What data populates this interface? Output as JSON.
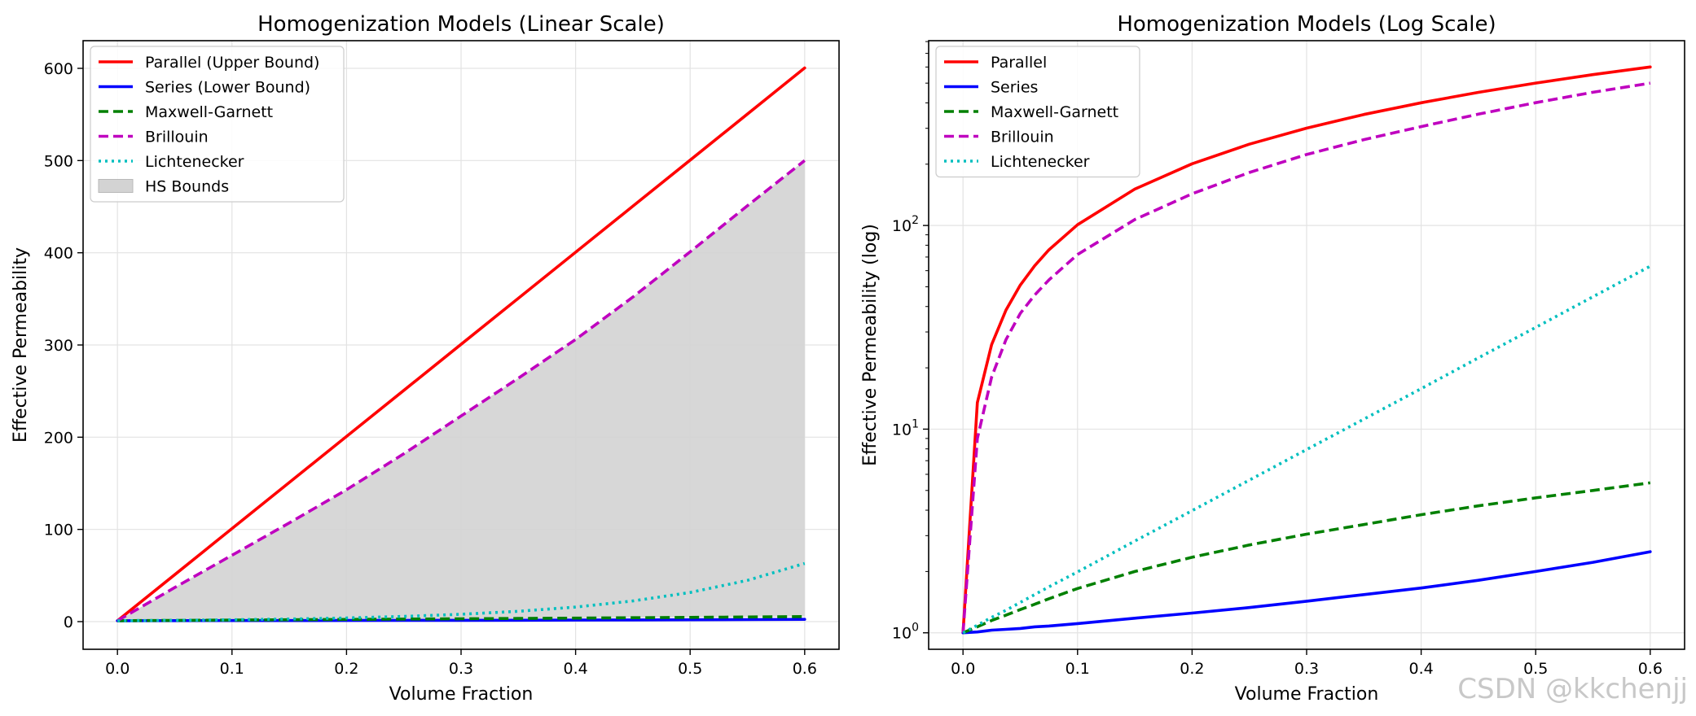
{
  "chart_data": [
    {
      "type": "line",
      "scale": "linear",
      "title": "Homogenization Models (Linear Scale)",
      "xlabel": "Volume Fraction",
      "ylabel": "Effective Permeability",
      "xlim": [
        -0.03,
        0.63
      ],
      "ylim": [
        -30,
        630
      ],
      "xticks": [
        0.0,
        0.1,
        0.2,
        0.3,
        0.4,
        0.5,
        0.6
      ],
      "xtick_labels": [
        "0.0",
        "0.1",
        "0.2",
        "0.3",
        "0.4",
        "0.5",
        "0.6"
      ],
      "yticks": [
        0,
        100,
        200,
        300,
        400,
        500,
        600
      ],
      "ytick_labels": [
        "0",
        "100",
        "200",
        "300",
        "400",
        "500",
        "600"
      ],
      "grid": true,
      "legend_position": "top-left",
      "x": [
        0.0,
        0.05,
        0.1,
        0.15,
        0.2,
        0.25,
        0.3,
        0.35,
        0.4,
        0.45,
        0.5,
        0.55,
        0.6
      ],
      "series": [
        {
          "name": "Parallel (Upper Bound)",
          "color": "#ff0000",
          "style": "solid",
          "values": [
            1,
            50.95,
            100.9,
            150.85,
            200.8,
            250.75,
            300.7,
            350.65,
            400.6,
            450.55,
            500.5,
            550.45,
            600.4
          ]
        },
        {
          "name": "Series (Lower Bound)",
          "color": "#0000ff",
          "style": "solid",
          "values": [
            1,
            1.05,
            1.11,
            1.18,
            1.25,
            1.33,
            1.43,
            1.54,
            1.66,
            1.81,
            2.0,
            2.22,
            2.5
          ]
        },
        {
          "name": "Maxwell-Garnett",
          "color": "#008000",
          "style": "dashed",
          "values": [
            1,
            1.3,
            1.65,
            2.0,
            2.35,
            2.7,
            3.05,
            3.4,
            3.8,
            4.2,
            4.6,
            5.0,
            5.45
          ]
        },
        {
          "name": "Brillouin",
          "color": "#bf00bf",
          "style": "dashed",
          "values": [
            1,
            37,
            72,
            107,
            143,
            182,
            223,
            264,
            306,
            352,
            401,
            451,
            500
          ]
        },
        {
          "name": "Lichtenecker",
          "color": "#00bfbf",
          "style": "dotted",
          "values": [
            1,
            1.41,
            1.99,
            2.82,
            3.98,
            5.62,
            7.94,
            11.2,
            15.8,
            22.4,
            31.6,
            44.7,
            63.1
          ]
        }
      ],
      "band": {
        "name": "HS Bounds",
        "color": "#d3d3d3",
        "lower": [
          1,
          1.3,
          1.65,
          2.0,
          2.35,
          2.7,
          3.05,
          3.4,
          3.8,
          4.2,
          4.6,
          5.0,
          5.45
        ],
        "upper": [
          1,
          37,
          72,
          107,
          143,
          182,
          223,
          264,
          306,
          352,
          401,
          451,
          500
        ]
      }
    },
    {
      "type": "line",
      "scale": "log",
      "title": "Homogenization Models (Log Scale)",
      "xlabel": "Volume Fraction",
      "ylabel": "Effective Permeability (log)",
      "xlim": [
        -0.03,
        0.63
      ],
      "ylim": [
        0.83,
        808
      ],
      "xticks": [
        0.0,
        0.1,
        0.2,
        0.3,
        0.4,
        0.5,
        0.6
      ],
      "xtick_labels": [
        "0.0",
        "0.1",
        "0.2",
        "0.3",
        "0.4",
        "0.5",
        "0.6"
      ],
      "yticks": [
        1,
        10,
        100
      ],
      "ytick_labels": [
        "10^0",
        "10^1",
        "10^2"
      ],
      "grid": true,
      "legend_position": "top-left",
      "x": [
        0.0,
        0.0125,
        0.025,
        0.0375,
        0.05,
        0.0625,
        0.075,
        0.1,
        0.15,
        0.2,
        0.25,
        0.3,
        0.35,
        0.4,
        0.45,
        0.5,
        0.55,
        0.6
      ],
      "series": [
        {
          "name": "Parallel",
          "color": "#ff0000",
          "style": "solid",
          "values": [
            1,
            13.5,
            26,
            38.4,
            50.95,
            63.4,
            75.9,
            100.9,
            150.85,
            200.8,
            250.75,
            300.7,
            350.65,
            400.6,
            450.55,
            500.5,
            550.45,
            600.4
          ]
        },
        {
          "name": "Series",
          "color": "#0000ff",
          "style": "solid",
          "values": [
            1,
            1.01,
            1.03,
            1.04,
            1.05,
            1.07,
            1.08,
            1.11,
            1.18,
            1.25,
            1.33,
            1.43,
            1.54,
            1.66,
            1.81,
            2.0,
            2.22,
            2.5
          ]
        },
        {
          "name": "Maxwell-Garnett",
          "color": "#008000",
          "style": "dashed",
          "values": [
            1,
            1.07,
            1.15,
            1.22,
            1.3,
            1.38,
            1.47,
            1.65,
            2.0,
            2.35,
            2.7,
            3.05,
            3.4,
            3.8,
            4.2,
            4.6,
            5.0,
            5.45
          ]
        },
        {
          "name": "Brillouin",
          "color": "#bf00bf",
          "style": "dashed",
          "values": [
            1,
            9,
            18,
            27.5,
            37,
            45.5,
            54,
            72,
            107,
            143,
            182,
            223,
            264,
            306,
            352,
            401,
            451,
            500
          ]
        },
        {
          "name": "Lichtenecker",
          "color": "#00bfbf",
          "style": "dotted",
          "values": [
            1,
            1.09,
            1.19,
            1.29,
            1.41,
            1.54,
            1.68,
            1.99,
            2.82,
            3.98,
            5.62,
            7.94,
            11.2,
            15.8,
            22.4,
            31.6,
            44.7,
            63.1
          ]
        }
      ]
    }
  ],
  "watermark": "CSDN @kkchenjj"
}
